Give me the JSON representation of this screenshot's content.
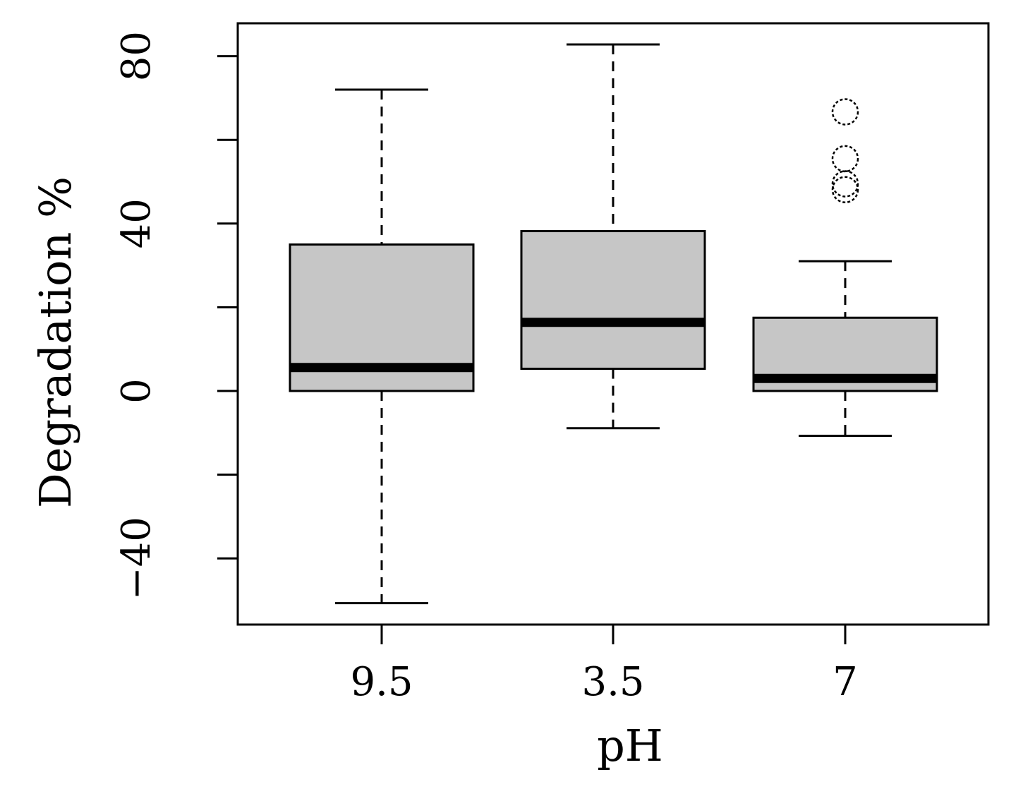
{
  "chart_data": {
    "type": "boxplot",
    "title": "",
    "xlabel": "pH",
    "ylabel": "Degradation %",
    "ylim": [
      -56,
      88
    ],
    "y_ticks": [
      -40,
      -20,
      0,
      20,
      40,
      60,
      80
    ],
    "y_tick_labels": [
      "-40",
      "",
      "0",
      "",
      "40",
      "",
      "80"
    ],
    "categories": [
      "9.5",
      "3.5",
      "7"
    ],
    "boxes": [
      {
        "category": "9.5",
        "whisker_low": -50.7,
        "q1": 0,
        "median": 5.6,
        "q3": 35,
        "whisker_high": 72,
        "outliers": []
      },
      {
        "category": "3.5",
        "whisker_low": -8.9,
        "q1": 5.3,
        "median": 16.4,
        "q3": 38.2,
        "whisker_high": 82.8,
        "outliers": []
      },
      {
        "category": "7",
        "whisker_low": -10.7,
        "q1": 0,
        "median": 3,
        "q3": 17.5,
        "whisker_high": 31,
        "outliers": [
          66.7,
          55.5,
          49.5,
          48.1
        ]
      }
    ],
    "box_fill": "#c6c6c6",
    "line_color": "#000000"
  }
}
